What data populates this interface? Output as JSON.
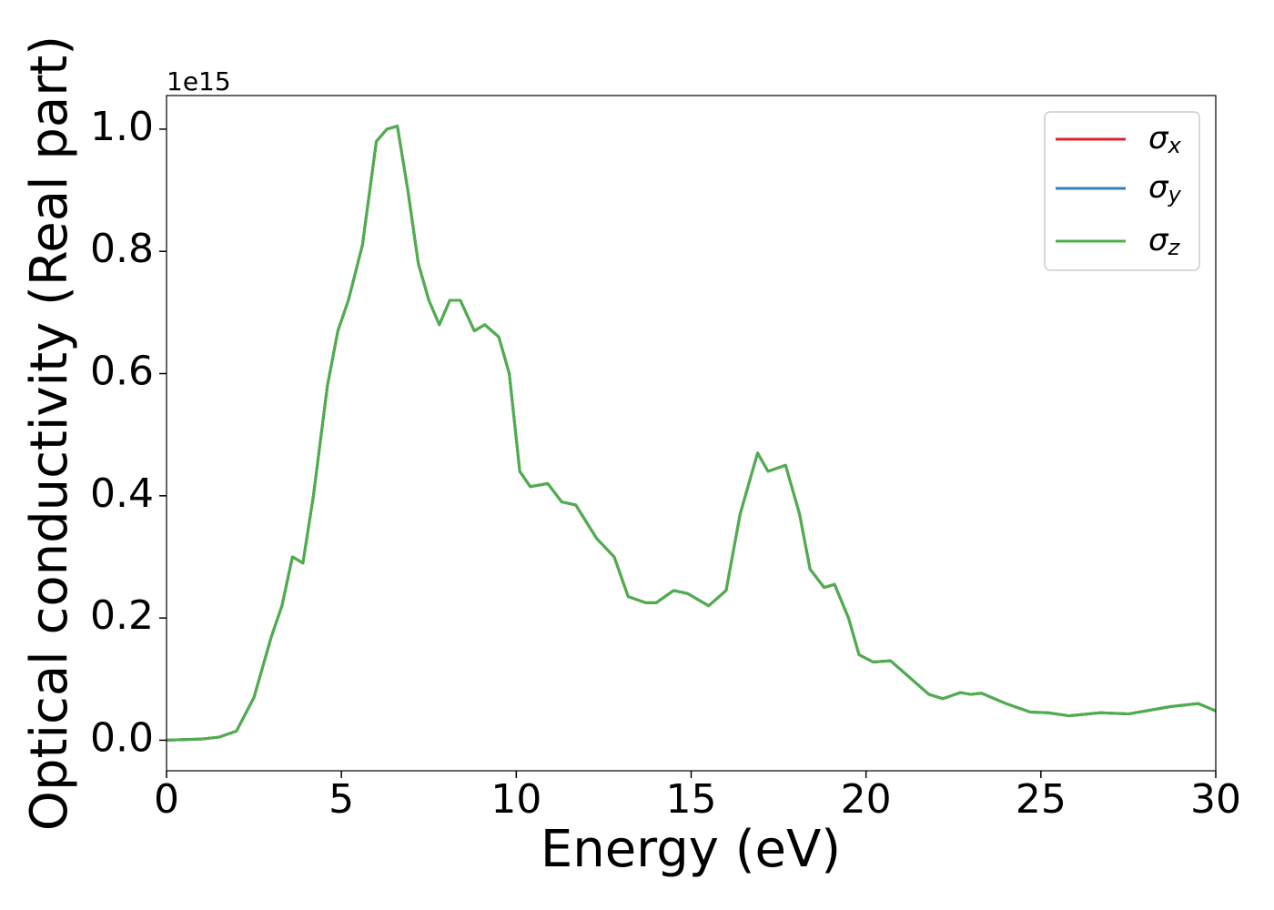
{
  "chart_data": {
    "type": "line",
    "xlabel": "Energy (eV)",
    "ylabel": "Optical conductivity (Real part)",
    "offset_label": "1e15",
    "x": [
      0,
      1,
      1.5,
      2,
      2.5,
      3,
      3.3,
      3.6,
      3.9,
      4.2,
      4.6,
      4.9,
      5.2,
      5.6,
      6,
      6.3,
      6.6,
      6.9,
      7.2,
      7.5,
      7.8,
      8.1,
      8.4,
      8.8,
      9.1,
      9.5,
      9.8,
      10.1,
      10.4,
      10.9,
      11.3,
      11.7,
      12.3,
      12.8,
      13.2,
      13.7,
      14,
      14.5,
      14.9,
      15.5,
      16,
      16.4,
      16.9,
      17.2,
      17.7,
      18.1,
      18.4,
      18.8,
      19.1,
      19.5,
      19.8,
      20.2,
      20.7,
      21.2,
      21.8,
      22.2,
      22.7,
      23,
      23.3,
      24,
      24.7,
      25.2,
      25.8,
      26.7,
      27.5,
      28.2,
      28.7,
      29.5,
      30
    ],
    "series": [
      {
        "name": "σx",
        "color": "#d62728",
        "values": [
          0,
          0.002,
          0.005,
          0.015,
          0.07,
          0.17,
          0.22,
          0.3,
          0.29,
          0.4,
          0.58,
          0.67,
          0.72,
          0.81,
          0.98,
          1.0,
          1.005,
          0.9,
          0.78,
          0.72,
          0.68,
          0.72,
          0.72,
          0.67,
          0.68,
          0.66,
          0.6,
          0.44,
          0.415,
          0.42,
          0.39,
          0.385,
          0.33,
          0.3,
          0.235,
          0.225,
          0.225,
          0.245,
          0.24,
          0.22,
          0.245,
          0.37,
          0.47,
          0.44,
          0.45,
          0.37,
          0.28,
          0.25,
          0.255,
          0.2,
          0.14,
          0.128,
          0.13,
          0.105,
          0.075,
          0.068,
          0.078,
          0.075,
          0.077,
          0.06,
          0.046,
          0.045,
          0.04,
          0.045,
          0.043,
          0.05,
          0.055,
          0.06,
          0.048
        ]
      },
      {
        "name": "σy",
        "color": "#377eb8",
        "values": [
          0,
          0.002,
          0.005,
          0.015,
          0.07,
          0.17,
          0.22,
          0.3,
          0.29,
          0.4,
          0.58,
          0.67,
          0.72,
          0.81,
          0.98,
          1.0,
          1.005,
          0.9,
          0.78,
          0.72,
          0.68,
          0.72,
          0.72,
          0.67,
          0.68,
          0.66,
          0.6,
          0.44,
          0.415,
          0.42,
          0.39,
          0.385,
          0.33,
          0.3,
          0.235,
          0.225,
          0.225,
          0.245,
          0.24,
          0.22,
          0.245,
          0.37,
          0.47,
          0.44,
          0.45,
          0.37,
          0.28,
          0.25,
          0.255,
          0.2,
          0.14,
          0.128,
          0.13,
          0.105,
          0.075,
          0.068,
          0.078,
          0.075,
          0.077,
          0.06,
          0.046,
          0.045,
          0.04,
          0.045,
          0.043,
          0.05,
          0.055,
          0.06,
          0.048
        ]
      },
      {
        "name": "σz",
        "color": "#4daf4a",
        "values": [
          0,
          0.002,
          0.005,
          0.015,
          0.07,
          0.17,
          0.22,
          0.3,
          0.29,
          0.4,
          0.58,
          0.67,
          0.72,
          0.81,
          0.98,
          1.0,
          1.005,
          0.9,
          0.78,
          0.72,
          0.68,
          0.72,
          0.72,
          0.67,
          0.68,
          0.66,
          0.6,
          0.44,
          0.415,
          0.42,
          0.39,
          0.385,
          0.33,
          0.3,
          0.235,
          0.225,
          0.225,
          0.245,
          0.24,
          0.22,
          0.245,
          0.37,
          0.47,
          0.44,
          0.45,
          0.37,
          0.28,
          0.25,
          0.255,
          0.2,
          0.14,
          0.128,
          0.13,
          0.105,
          0.075,
          0.068,
          0.078,
          0.075,
          0.077,
          0.06,
          0.046,
          0.045,
          0.04,
          0.045,
          0.043,
          0.05,
          0.055,
          0.06,
          0.048
        ]
      }
    ],
    "xlim": [
      0,
      30
    ],
    "xticks": [
      0,
      5,
      10,
      15,
      20,
      25,
      30
    ],
    "ylim": [
      -0.05,
      1.055
    ],
    "yticks": [
      {
        "value": 0,
        "label": "0.0"
      },
      0.2,
      0.4,
      0.6,
      0.8,
      {
        "value": 1,
        "label": "1.0"
      }
    ],
    "grid": false,
    "legend": "upper right"
  }
}
